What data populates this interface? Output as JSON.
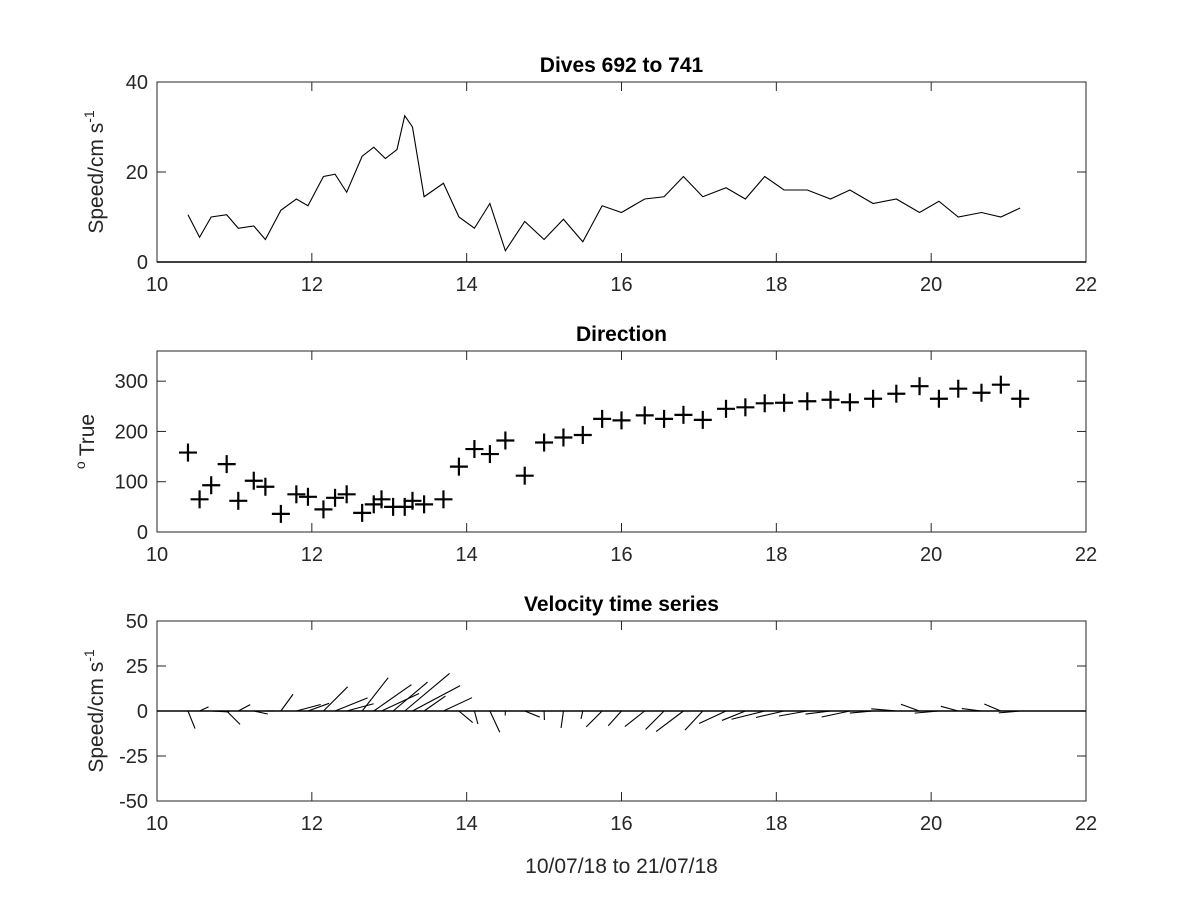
{
  "figure": {
    "xlabel": "10/07/18 to 21/07/18"
  },
  "chart_data": [
    {
      "type": "line",
      "title": "Dives 692 to 741",
      "ylabel": "Speed/cm s",
      "ylabel_exponent": "-1",
      "xlim": [
        10,
        22
      ],
      "ylim": [
        0,
        40
      ],
      "xticks": [
        10,
        12,
        14,
        16,
        18,
        20,
        22
      ],
      "yticks": [
        0,
        20,
        40
      ],
      "x": [
        10.4,
        10.55,
        10.7,
        10.9,
        11.05,
        11.25,
        11.4,
        11.6,
        11.8,
        11.95,
        12.15,
        12.3,
        12.45,
        12.65,
        12.8,
        12.95,
        13.1,
        13.2,
        13.3,
        13.45,
        13.7,
        13.9,
        14.1,
        14.3,
        14.5,
        14.75,
        15.0,
        15.25,
        15.5,
        15.75,
        16.0,
        16.3,
        16.55,
        16.8,
        17.05,
        17.35,
        17.6,
        17.85,
        18.1,
        18.4,
        18.7,
        18.95,
        19.25,
        19.55,
        19.85,
        20.1,
        20.35,
        20.65,
        20.9,
        21.15
      ],
      "y": [
        10.5,
        5.5,
        10,
        10.5,
        7.5,
        8,
        5,
        11.5,
        14,
        12.5,
        19,
        19.5,
        15.5,
        23.5,
        25.5,
        23,
        25,
        32.5,
        30,
        14.5,
        17.5,
        10,
        7.5,
        13,
        2.5,
        9,
        5,
        9.5,
        4.5,
        12.5,
        11,
        14,
        14.5,
        19,
        14.5,
        16.5,
        14,
        19,
        16,
        16,
        14,
        16,
        13,
        14,
        11,
        13.5,
        10,
        11,
        10,
        12
      ]
    },
    {
      "type": "scatter",
      "title": "Direction",
      "ylabel": "True",
      "ylabel_prefix": "o",
      "marker": "+",
      "xlim": [
        10,
        22
      ],
      "ylim": [
        0,
        360
      ],
      "xticks": [
        10,
        12,
        14,
        16,
        18,
        20,
        22
      ],
      "yticks": [
        0,
        100,
        200,
        300
      ],
      "x": [
        10.4,
        10.55,
        10.7,
        10.9,
        11.05,
        11.25,
        11.4,
        11.6,
        11.8,
        11.95,
        12.15,
        12.3,
        12.45,
        12.65,
        12.8,
        12.9,
        13.05,
        13.2,
        13.3,
        13.45,
        13.7,
        13.9,
        14.1,
        14.3,
        14.5,
        14.75,
        15.0,
        15.25,
        15.5,
        15.75,
        16.0,
        16.3,
        16.55,
        16.8,
        17.05,
        17.35,
        17.6,
        17.85,
        18.1,
        18.4,
        18.7,
        18.95,
        19.25,
        19.55,
        19.85,
        20.1,
        20.35,
        20.65,
        20.9,
        21.15
      ],
      "y": [
        158,
        65,
        93,
        135,
        62,
        102,
        90,
        36,
        75,
        70,
        45,
        68,
        75,
        38,
        55,
        65,
        50,
        50,
        62,
        55,
        65,
        130,
        165,
        155,
        182,
        112,
        178,
        188,
        193,
        225,
        222,
        232,
        225,
        233,
        223,
        245,
        248,
        256,
        257,
        260,
        263,
        258,
        265,
        275,
        290,
        265,
        285,
        277,
        293,
        265
      ]
    },
    {
      "type": "quiver",
      "title": "Velocity time series",
      "ylabel": "Speed/cm s",
      "ylabel_exponent": "-1",
      "xlim": [
        10,
        22
      ],
      "ylim": [
        -50,
        50
      ],
      "xticks": [
        10,
        12,
        14,
        16,
        18,
        20,
        22
      ],
      "yticks": [
        -50,
        -25,
        0,
        25,
        50
      ],
      "x": [
        10.4,
        10.55,
        10.7,
        10.9,
        11.05,
        11.25,
        11.4,
        11.6,
        11.8,
        11.95,
        12.15,
        12.3,
        12.45,
        12.65,
        12.8,
        12.9,
        13.05,
        13.2,
        13.3,
        13.45,
        13.7,
        13.9,
        14.1,
        14.3,
        14.5,
        14.75,
        15.0,
        15.25,
        15.5,
        15.75,
        16.0,
        16.3,
        16.55,
        16.8,
        17.05,
        17.35,
        17.6,
        17.85,
        18.1,
        18.4,
        18.7,
        18.95,
        19.25,
        19.55,
        19.85,
        20.1,
        20.35,
        20.65,
        20.9,
        21.15
      ],
      "direction_deg": [
        158,
        65,
        93,
        135,
        62,
        102,
        90,
        36,
        75,
        70,
        45,
        68,
        75,
        38,
        55,
        65,
        50,
        50,
        62,
        55,
        65,
        130,
        165,
        155,
        182,
        112,
        178,
        188,
        193,
        225,
        222,
        232,
        225,
        233,
        223,
        245,
        248,
        256,
        257,
        260,
        263,
        258,
        265,
        275,
        290,
        265,
        285,
        277,
        293,
        265
      ],
      "speed": [
        10.5,
        5.5,
        10,
        10.5,
        7.5,
        8,
        5,
        11.5,
        14,
        12.5,
        19,
        19.5,
        15.5,
        23.5,
        25.5,
        23,
        25,
        32.5,
        30,
        14.5,
        17.5,
        10,
        7.5,
        13,
        2.5,
        9,
        5,
        9.5,
        4.5,
        12.5,
        11,
        14,
        14.5,
        19,
        14.5,
        16.5,
        14,
        19,
        16,
        16,
        14,
        16,
        13,
        14,
        11,
        13.5,
        10,
        11,
        10,
        12
      ]
    }
  ]
}
